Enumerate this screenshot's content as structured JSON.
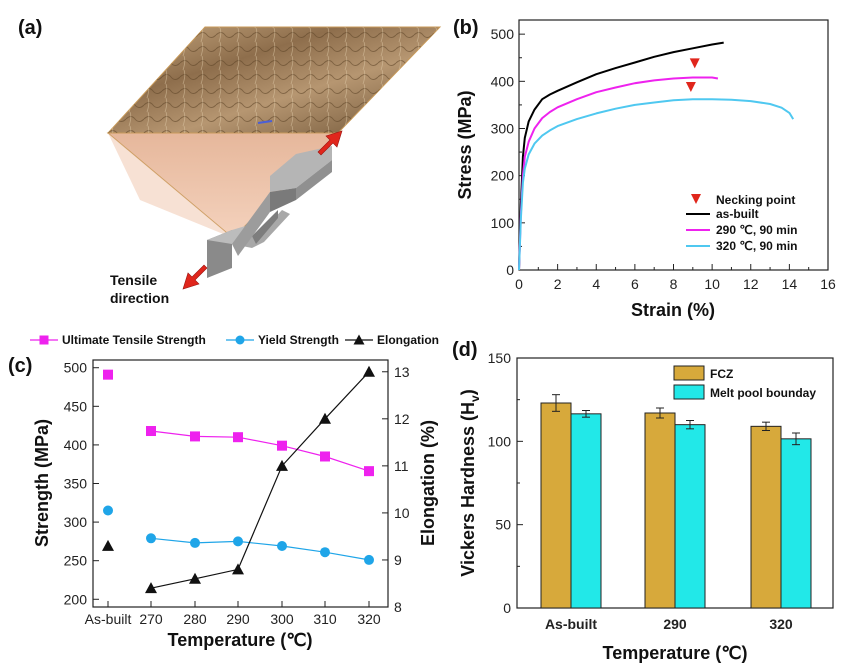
{
  "panel_a": {
    "label": "(a)",
    "annotation_line1": "Tensile",
    "annotation_line2": "direction",
    "arrow_color": "#e0261c"
  },
  "chart_data": [
    {
      "id": "b",
      "panel_label": "(b)",
      "type": "line",
      "xlabel": "Strain (%)",
      "ylabel": "Stress (MPa)",
      "xlim": [
        0,
        16
      ],
      "ylim": [
        0,
        530
      ],
      "xticks": [
        0,
        2,
        4,
        6,
        8,
        10,
        12,
        14,
        16
      ],
      "yticks": [
        0,
        100,
        200,
        300,
        400,
        500
      ],
      "legend_position": "bottom-right",
      "series": [
        {
          "name": "as-built",
          "color": "#000000",
          "x": [
            0,
            0.1,
            0.2,
            0.3,
            0.5,
            0.8,
            1.2,
            1.6,
            2.0,
            3,
            4,
            5,
            6,
            7,
            8,
            9,
            10,
            10.6
          ],
          "y": [
            0,
            140,
            240,
            280,
            315,
            340,
            362,
            372,
            380,
            398,
            415,
            428,
            440,
            452,
            462,
            470,
            478,
            482
          ]
        },
        {
          "name": "290 ℃, 90 min",
          "color": "#ee22ee",
          "x": [
            0,
            0.1,
            0.2,
            0.3,
            0.5,
            0.8,
            1.2,
            1.6,
            2,
            3,
            4,
            5,
            6,
            7,
            8,
            9,
            10,
            10.3
          ],
          "y": [
            0,
            120,
            200,
            240,
            272,
            300,
            322,
            335,
            345,
            362,
            377,
            387,
            396,
            402,
            406,
            408,
            408,
            406
          ]
        },
        {
          "name": "320 ℃, 90 min",
          "color": "#4fc8f0",
          "x": [
            0,
            0.1,
            0.2,
            0.3,
            0.5,
            0.8,
            1.2,
            1.6,
            2,
            3,
            4,
            5,
            6,
            7,
            8,
            9,
            10,
            11,
            12,
            13,
            13.6,
            14,
            14.2
          ],
          "y": [
            0,
            110,
            185,
            215,
            245,
            268,
            285,
            296,
            305,
            320,
            332,
            342,
            350,
            355,
            360,
            362,
            362,
            361,
            358,
            352,
            344,
            333,
            320
          ]
        }
      ],
      "markers": [
        {
          "name": "Necking point",
          "color": "#e0261c",
          "points": [
            {
              "x": 9.1,
              "y": 438
            },
            {
              "x": 8.9,
              "y": 388
            }
          ]
        }
      ]
    },
    {
      "id": "c",
      "panel_label": "(c)",
      "type": "line",
      "xlabel": "Temperature (℃)",
      "ylabel": "Strength (MPa)",
      "y2label": "Elongation (%)",
      "categories": [
        "As-built",
        "270",
        "280",
        "290",
        "300",
        "310",
        "320"
      ],
      "ylim": [
        190,
        510
      ],
      "y2lim": [
        8,
        13.25
      ],
      "yticks": [
        200,
        250,
        300,
        350,
        400,
        450,
        500
      ],
      "y2ticks": [
        8,
        9,
        10,
        11,
        12,
        13
      ],
      "series": [
        {
          "name": "Ultimate Tensile Strength",
          "axis": "left",
          "color": "#ee22ee",
          "marker": "square",
          "values": [
            491,
            418,
            411,
            410,
            399,
            385,
            366
          ]
        },
        {
          "name": "Yield Strength",
          "axis": "left",
          "color": "#1fa5e8",
          "marker": "circle",
          "values": [
            315,
            279,
            273,
            275,
            269,
            261,
            251
          ]
        },
        {
          "name": "Elongation",
          "axis": "right",
          "color": "#111111",
          "marker": "triangle",
          "values": [
            9.3,
            8.4,
            8.6,
            8.8,
            11.0,
            12.0,
            13.0
          ]
        }
      ]
    },
    {
      "id": "d",
      "panel_label": "(d)",
      "type": "bar",
      "xlabel": "Temperature (℃)",
      "ylabel": "Vickers Hardness (Hv)",
      "categories": [
        "As-built",
        "290",
        "320"
      ],
      "ylim": [
        0,
        150
      ],
      "yticks": [
        0,
        50,
        100,
        150
      ],
      "legend_position": "top-right",
      "series": [
        {
          "name": "FCZ",
          "color": "#d7a93b",
          "values": [
            123,
            117,
            109
          ],
          "errors": [
            5,
            3,
            2.5
          ]
        },
        {
          "name": "Melt pool bounday",
          "color": "#22e8e8",
          "values": [
            116.5,
            110,
            101.5
          ],
          "errors": [
            2,
            2.5,
            3.5
          ]
        }
      ]
    }
  ]
}
